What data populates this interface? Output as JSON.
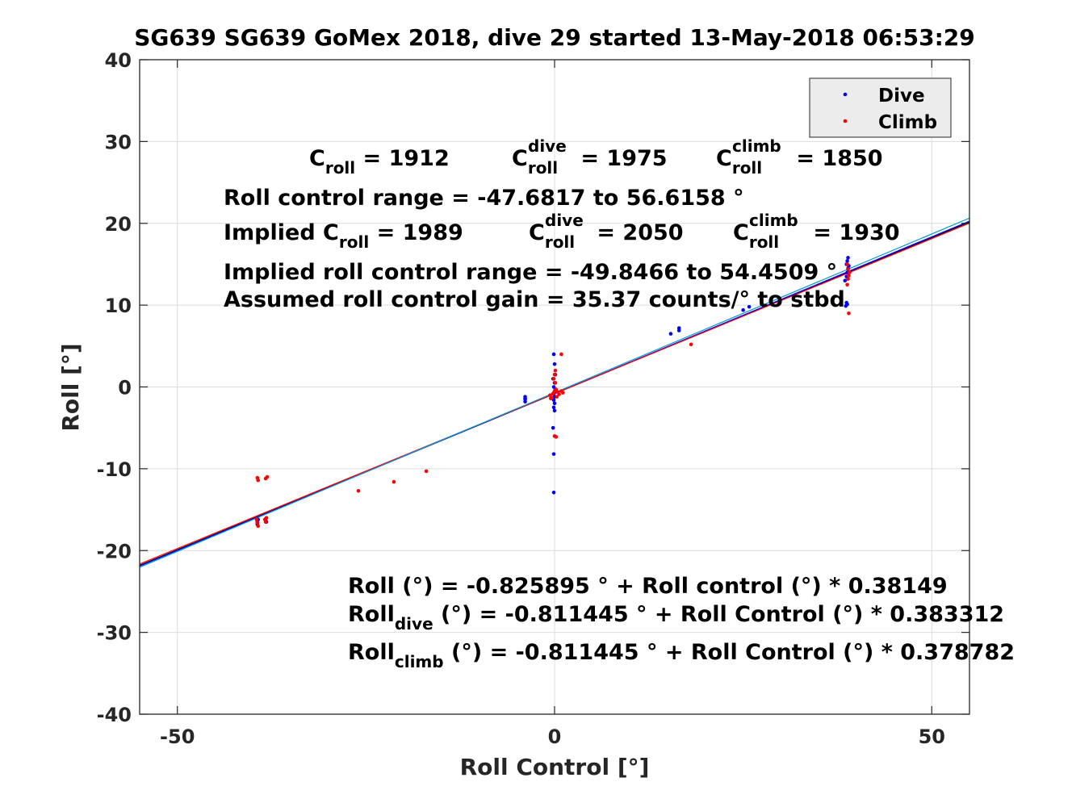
{
  "chart_data": {
    "type": "scatter",
    "title": "SG639 SG639 GoMex 2018, dive 29 started 13-May-2018 06:53:29",
    "xlabel": "Roll Control [°]",
    "ylabel": "Roll [°]",
    "xlim": [
      -55,
      55
    ],
    "ylim": [
      -40,
      40
    ],
    "xticks": [
      -50,
      0,
      50
    ],
    "yticks": [
      -40,
      -30,
      -20,
      -10,
      0,
      10,
      20,
      30,
      40
    ],
    "xtick_labels": [
      "-50",
      "0",
      "50"
    ],
    "ytick_labels": [
      "-40",
      "-30",
      "-20",
      "-10",
      "0",
      "10",
      "20",
      "30",
      "40"
    ],
    "grid": true,
    "legend_position": "top-right",
    "legend": [
      {
        "name": "Dive",
        "color": "#0000ff"
      },
      {
        "name": "Climb",
        "color": "#ff0000"
      }
    ],
    "series": [
      {
        "name": "Dive",
        "color": "#0000ff",
        "points": [
          [
            -39.4,
            -16.5
          ],
          [
            -39.4,
            -16.8
          ],
          [
            -39.3,
            -16.2
          ],
          [
            -38.3,
            -16.3
          ],
          [
            -38.2,
            -16.5
          ],
          [
            -3.9,
            -1.2
          ],
          [
            -3.9,
            -1.5
          ],
          [
            -3.9,
            -1.8
          ],
          [
            -3.9,
            -1.4
          ],
          [
            -0.1,
            4.0
          ],
          [
            0.0,
            2.8
          ],
          [
            0.1,
            1.5
          ],
          [
            -0.2,
            1.0
          ],
          [
            0.0,
            0.5
          ],
          [
            -0.1,
            0.0
          ],
          [
            0.1,
            -0.3
          ],
          [
            0.0,
            -0.6
          ],
          [
            -0.1,
            -0.9
          ],
          [
            0.0,
            -1.2
          ],
          [
            -0.1,
            -1.6
          ],
          [
            0.0,
            -2.0
          ],
          [
            -0.1,
            -2.5
          ],
          [
            0.0,
            -2.9
          ],
          [
            -0.2,
            -5.0
          ],
          [
            -0.1,
            -8.2
          ],
          [
            -0.1,
            -12.9
          ],
          [
            15.4,
            6.5
          ],
          [
            16.5,
            6.9
          ],
          [
            16.5,
            7.2
          ],
          [
            25.0,
            9.4
          ],
          [
            25.8,
            9.8
          ],
          [
            38.6,
            9.9
          ],
          [
            38.7,
            10.3
          ],
          [
            38.8,
            10.1
          ],
          [
            38.5,
            13.0
          ],
          [
            38.7,
            13.5
          ],
          [
            38.8,
            14.0
          ],
          [
            38.9,
            14.5
          ],
          [
            38.7,
            15.0
          ],
          [
            38.8,
            15.4
          ],
          [
            38.9,
            15.8
          ],
          [
            39.0,
            14.8
          ]
        ]
      },
      {
        "name": "Climb",
        "color": "#ff0000",
        "points": [
          [
            -39.4,
            -11.1
          ],
          [
            -39.3,
            -11.4
          ],
          [
            -38.3,
            -11.2
          ],
          [
            -38.1,
            -11.0
          ],
          [
            -39.5,
            -16.2
          ],
          [
            -39.4,
            -16.6
          ],
          [
            -39.3,
            -17.0
          ],
          [
            -38.4,
            -16.2
          ],
          [
            -38.3,
            -16.5
          ],
          [
            -38.2,
            -16.0
          ],
          [
            -26.0,
            -12.7
          ],
          [
            -21.3,
            -11.6
          ],
          [
            -17.0,
            -10.3
          ],
          [
            -0.6,
            -1.0
          ],
          [
            -0.4,
            -1.3
          ],
          [
            -0.2,
            -0.8
          ],
          [
            0.0,
            -0.5
          ],
          [
            0.2,
            -0.3
          ],
          [
            0.4,
            -0.6
          ],
          [
            0.6,
            -0.9
          ],
          [
            0.9,
            -0.5
          ],
          [
            1.1,
            -0.7
          ],
          [
            0.1,
            0.5
          ],
          [
            -0.1,
            1.0
          ],
          [
            0.0,
            1.5
          ],
          [
            0.1,
            2.0
          ],
          [
            0.3,
            -1.2
          ],
          [
            -0.5,
            -1.4
          ],
          [
            0.0,
            -6.0
          ],
          [
            0.2,
            -6.1
          ],
          [
            0.9,
            4.0
          ],
          [
            18.1,
            5.2
          ],
          [
            38.8,
            12.5
          ],
          [
            38.9,
            13.2
          ],
          [
            39.0,
            13.6
          ],
          [
            39.1,
            14.0
          ],
          [
            38.9,
            14.4
          ],
          [
            39.0,
            9.0
          ],
          [
            38.8,
            15.0
          ]
        ]
      }
    ],
    "fit_lines": [
      {
        "name": "all",
        "color": "#000000",
        "intercept": -0.825895,
        "slope": 0.38149
      },
      {
        "name": "dive",
        "color": "#0000ff",
        "intercept": -0.811445,
        "slope": 0.383312
      },
      {
        "name": "climb",
        "color": "#ff0000",
        "intercept": -0.811445,
        "slope": 0.378782
      },
      {
        "name": "trend",
        "color": "#0099cc",
        "intercept": -0.7,
        "slope": 0.388
      }
    ],
    "annotations": {
      "croll_line": {
        "c1": "C",
        "c1_sub": "roll",
        "v1": " = 1912",
        "c2": "C",
        "c2_sub": "roll",
        "c2_sup": "dive",
        "v2": " = 1975",
        "c3": "C",
        "c3_sub": "roll",
        "c3_sup": "climb",
        "v3": " = 1850"
      },
      "range_line": "Roll control range = -47.6817 to 56.6158 °",
      "implied_line": {
        "prefix": "Implied C",
        "p_sub": "roll",
        "v1": " = 1989",
        "c2": "C",
        "c2_sub": "roll",
        "c2_sup": "dive",
        "v2": " = 2050",
        "c3": "C",
        "c3_sub": "roll",
        "c3_sup": "climb",
        "v3": " = 1930"
      },
      "implied_range_line": "Implied roll control range = -49.8466 to 54.4509 °",
      "gain_line": "Assumed roll control gain = 35.37 counts/° to stbd",
      "fit_all": "Roll (°) = -0.825895 ° + Roll control (°) * 0.38149",
      "fit_dive": {
        "pre": "Roll",
        "sub": "dive",
        "post": " (°) = -0.811445 ° + Roll Control (°) * 0.383312"
      },
      "fit_climb": {
        "pre": "Roll",
        "sub": "climb",
        "post": " (°) = -0.811445 ° + Roll Control (°) * 0.378782"
      }
    }
  }
}
